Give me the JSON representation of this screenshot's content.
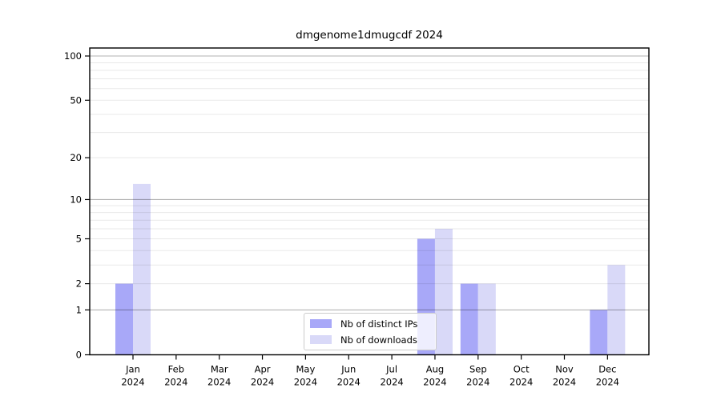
{
  "chart_data": {
    "type": "bar",
    "title": "dmgenome1dmugcdf 2024",
    "categories": [
      "Jan",
      "Feb",
      "Mar",
      "Apr",
      "May",
      "Jun",
      "Jul",
      "Aug",
      "Sep",
      "Oct",
      "Nov",
      "Dec"
    ],
    "year_label": "2024",
    "series": [
      {
        "name": "Nb of distinct IPs",
        "color": "#a8a8f8",
        "values": [
          2,
          0,
          0,
          0,
          0,
          0,
          0,
          5,
          2,
          0,
          0,
          1
        ]
      },
      {
        "name": "Nb of downloads",
        "color": "#d9d9f8",
        "values": [
          13,
          0,
          0,
          0,
          0,
          0,
          0,
          6,
          2,
          0,
          0,
          3
        ]
      }
    ],
    "xlabel": "",
    "ylabel": "",
    "yscale": "log1p",
    "ylim": [
      0,
      113
    ],
    "y_tick_labels": [
      0,
      1,
      2,
      5,
      10,
      20,
      50,
      100
    ],
    "y_major_gridlines": [
      1,
      10,
      100
    ],
    "y_minor_gridlines": [
      2,
      3,
      4,
      5,
      6,
      7,
      8,
      9,
      20,
      30,
      40,
      50,
      60,
      70,
      80,
      90
    ],
    "grid": "on",
    "legend_position": "lower center (inside plot)"
  },
  "legend": {
    "items": [
      {
        "label": "Nb of distinct IPs",
        "swatch_color": "#a8a8f8"
      },
      {
        "label": "Nb of downloads",
        "swatch_color": "#d9d9f8"
      }
    ]
  },
  "colors": {
    "axis": "#000000",
    "major_grid": "rgba(0,0,0,0.30)",
    "minor_grid": "rgba(0,0,0,0.09)",
    "background": "#ffffff"
  }
}
